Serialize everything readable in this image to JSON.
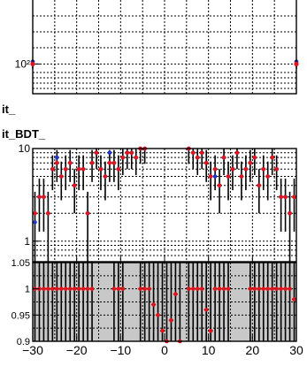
{
  "page": {
    "labels": [
      "it_",
      "it_BDT_"
    ]
  },
  "colors": {
    "data": "#e4131b",
    "model": "#1f35c8",
    "ratio_band": "#c8c8c8",
    "axis": "#000000"
  },
  "chart_data": [
    {
      "type": "scatter",
      "role": "top-panel-partial",
      "yscale": "log",
      "ylim": [
        60,
        300
      ],
      "y_ticks": [
        {
          "value": 100,
          "label": "10²"
        }
      ],
      "points_data": [
        [
          -30,
          100
        ],
        [
          30,
          100
        ]
      ],
      "points_model": [
        [
          -30,
          104
        ],
        [
          30,
          104
        ]
      ]
    },
    {
      "type": "scatter",
      "role": "main-distribution",
      "yscale": "log",
      "ylim": [
        0.6,
        10
      ],
      "grid": true,
      "y_ticks": [
        {
          "value": 10,
          "label": "10"
        },
        {
          "value": 1,
          "label": "1"
        }
      ],
      "model_color_meaning": "blue markers (expectation)",
      "data_points": [
        {
          "x": -29.5,
          "y": 2.0,
          "m": 1.6
        },
        {
          "x": -28.5,
          "y": 3.0,
          "m": 3.0
        },
        {
          "x": -27.5,
          "y": 3.0,
          "m": 3.0
        },
        {
          "x": -26.5,
          "y": 2.0,
          "m": 2.0
        },
        {
          "x": -25.5,
          "y": 6.0,
          "m": 6.0
        },
        {
          "x": -24.5,
          "y": 7.0,
          "m": 8.0
        },
        {
          "x": -23.5,
          "y": 5.0,
          "m": 5.0
        },
        {
          "x": -22.5,
          "y": 6.0,
          "m": 6.0
        },
        {
          "x": -21.5,
          "y": 7.0,
          "m": 7.0
        },
        {
          "x": -20.5,
          "y": 4.0,
          "m": 4.0
        },
        {
          "x": -19.5,
          "y": 6.0,
          "m": 6.0
        },
        {
          "x": -18.5,
          "y": 6.0,
          "m": 6.0
        },
        {
          "x": -17.5,
          "y": 2.0,
          "m": 2.0
        },
        {
          "x": -16.5,
          "y": 7.0,
          "m": 7.0
        },
        {
          "x": -15.5,
          "y": 9.0,
          "m": 9.0
        },
        {
          "x": -14.5,
          "y": 6.0,
          "m": 6.0
        },
        {
          "x": -13.5,
          "y": 5.0,
          "m": 5.0
        },
        {
          "x": -12.5,
          "y": 7.0,
          "m": 9.0
        },
        {
          "x": -11.5,
          "y": 7.0,
          "m": 7.0
        },
        {
          "x": -10.5,
          "y": 6.0,
          "m": 6.0
        },
        {
          "x": -9.5,
          "y": 8.0,
          "m": 8.0
        },
        {
          "x": -8.5,
          "y": 9.0,
          "m": 9.0
        },
        {
          "x": -7.5,
          "y": 9.0,
          "m": 9.0
        },
        {
          "x": -6.5,
          "y": 8.0,
          "m": 8.0
        },
        {
          "x": -5.5,
          "y": 10.0,
          "m": 10.0
        },
        {
          "x": -4.5,
          "y": 10.0,
          "m": 10.0
        },
        {
          "x": 5.5,
          "y": 10.0,
          "m": 10.0
        },
        {
          "x": 6.5,
          "y": 9.0,
          "m": 9.0
        },
        {
          "x": 7.5,
          "y": 8.0,
          "m": 8.0
        },
        {
          "x": 8.5,
          "y": 9.0,
          "m": 9.0
        },
        {
          "x": 9.5,
          "y": 7.0,
          "m": 7.0
        },
        {
          "x": 10.5,
          "y": 5.0,
          "m": 5.0
        },
        {
          "x": 11.5,
          "y": 6.0,
          "m": 5.0
        },
        {
          "x": 12.5,
          "y": 4.0,
          "m": 4.0
        },
        {
          "x": 13.5,
          "y": 8.0,
          "m": 8.0
        },
        {
          "x": 14.5,
          "y": 5.0,
          "m": 5.0
        },
        {
          "x": 15.5,
          "y": 6.0,
          "m": 6.0
        },
        {
          "x": 16.5,
          "y": 9.0,
          "m": 9.0
        },
        {
          "x": 17.5,
          "y": 5.0,
          "m": 5.0
        },
        {
          "x": 18.5,
          "y": 6.0,
          "m": 6.0
        },
        {
          "x": 19.5,
          "y": 7.0,
          "m": 7.0
        },
        {
          "x": 20.5,
          "y": 8.0,
          "m": 8.0
        },
        {
          "x": 21.5,
          "y": 4.0,
          "m": 4.0
        },
        {
          "x": 22.5,
          "y": 6.0,
          "m": 6.0
        },
        {
          "x": 23.5,
          "y": 5.0,
          "m": 5.0
        },
        {
          "x": 24.5,
          "y": 8.0,
          "m": 8.0
        },
        {
          "x": 25.5,
          "y": 6.0,
          "m": 6.0
        },
        {
          "x": 26.5,
          "y": 3.0,
          "m": 3.0
        },
        {
          "x": 27.5,
          "y": 3.0,
          "m": 3.0
        },
        {
          "x": 28.5,
          "y": 2.0,
          "m": 2.0
        },
        {
          "x": 29.5,
          "y": 3.0,
          "m": 3.0
        }
      ]
    },
    {
      "type": "scatter",
      "role": "ratio",
      "xlim": [
        -30,
        30
      ],
      "ylim": [
        0.9,
        1.05
      ],
      "grid": true,
      "x_ticks": [
        {
          "value": -30,
          "label": "−30"
        },
        {
          "value": -20,
          "label": "−20"
        },
        {
          "value": -10,
          "label": "−10"
        },
        {
          "value": 0,
          "label": "0"
        },
        {
          "value": 10,
          "label": "10"
        },
        {
          "value": 20,
          "label": "20"
        },
        {
          "value": 30,
          "label": "30"
        }
      ],
      "y_ticks": [
        {
          "value": 1.05,
          "label": "1.05"
        },
        {
          "value": 1,
          "label": "1"
        },
        {
          "value": 0.95,
          "label": "0.95"
        },
        {
          "value": 0.9,
          "label": "0.9"
        }
      ],
      "points": [
        [
          -29.5,
          1.0
        ],
        [
          -28.5,
          1.0
        ],
        [
          -27.5,
          1.0
        ],
        [
          -26.5,
          1.0
        ],
        [
          -25.5,
          1.0
        ],
        [
          -24.5,
          1.0
        ],
        [
          -23.5,
          1.0
        ],
        [
          -22.5,
          1.0
        ],
        [
          -21.5,
          1.0
        ],
        [
          -20.5,
          1.0
        ],
        [
          -19.5,
          1.0
        ],
        [
          -18.5,
          1.0
        ],
        [
          -17.5,
          1.0
        ],
        [
          -16.5,
          1.0
        ],
        [
          -11.5,
          1.0
        ],
        [
          -10.5,
          1.0
        ],
        [
          -9.5,
          1.0
        ],
        [
          -5.5,
          1.0
        ],
        [
          -4.5,
          1.0
        ],
        [
          -3.5,
          1.0
        ],
        [
          -2.5,
          0.97
        ],
        [
          -1.5,
          0.95
        ],
        [
          -0.5,
          0.92
        ],
        [
          0.5,
          0.9
        ],
        [
          1.5,
          0.94
        ],
        [
          2.5,
          0.99
        ],
        [
          3.5,
          0.9
        ],
        [
          5.5,
          1.0
        ],
        [
          6.5,
          1.0
        ],
        [
          7.5,
          1.0
        ],
        [
          8.5,
          1.0
        ],
        [
          9.5,
          0.96
        ],
        [
          10.5,
          0.92
        ],
        [
          11.5,
          1.0
        ],
        [
          12.5,
          1.0
        ],
        [
          13.5,
          1.0
        ],
        [
          14.5,
          1.0
        ],
        [
          19.5,
          1.0
        ],
        [
          20.5,
          1.0
        ],
        [
          21.5,
          1.0
        ],
        [
          22.5,
          1.0
        ],
        [
          23.5,
          1.0
        ],
        [
          24.5,
          1.0
        ],
        [
          25.5,
          1.0
        ],
        [
          26.5,
          1.0
        ],
        [
          27.5,
          1.0
        ],
        [
          28.5,
          1.0
        ],
        [
          29.5,
          0.98
        ]
      ]
    }
  ]
}
